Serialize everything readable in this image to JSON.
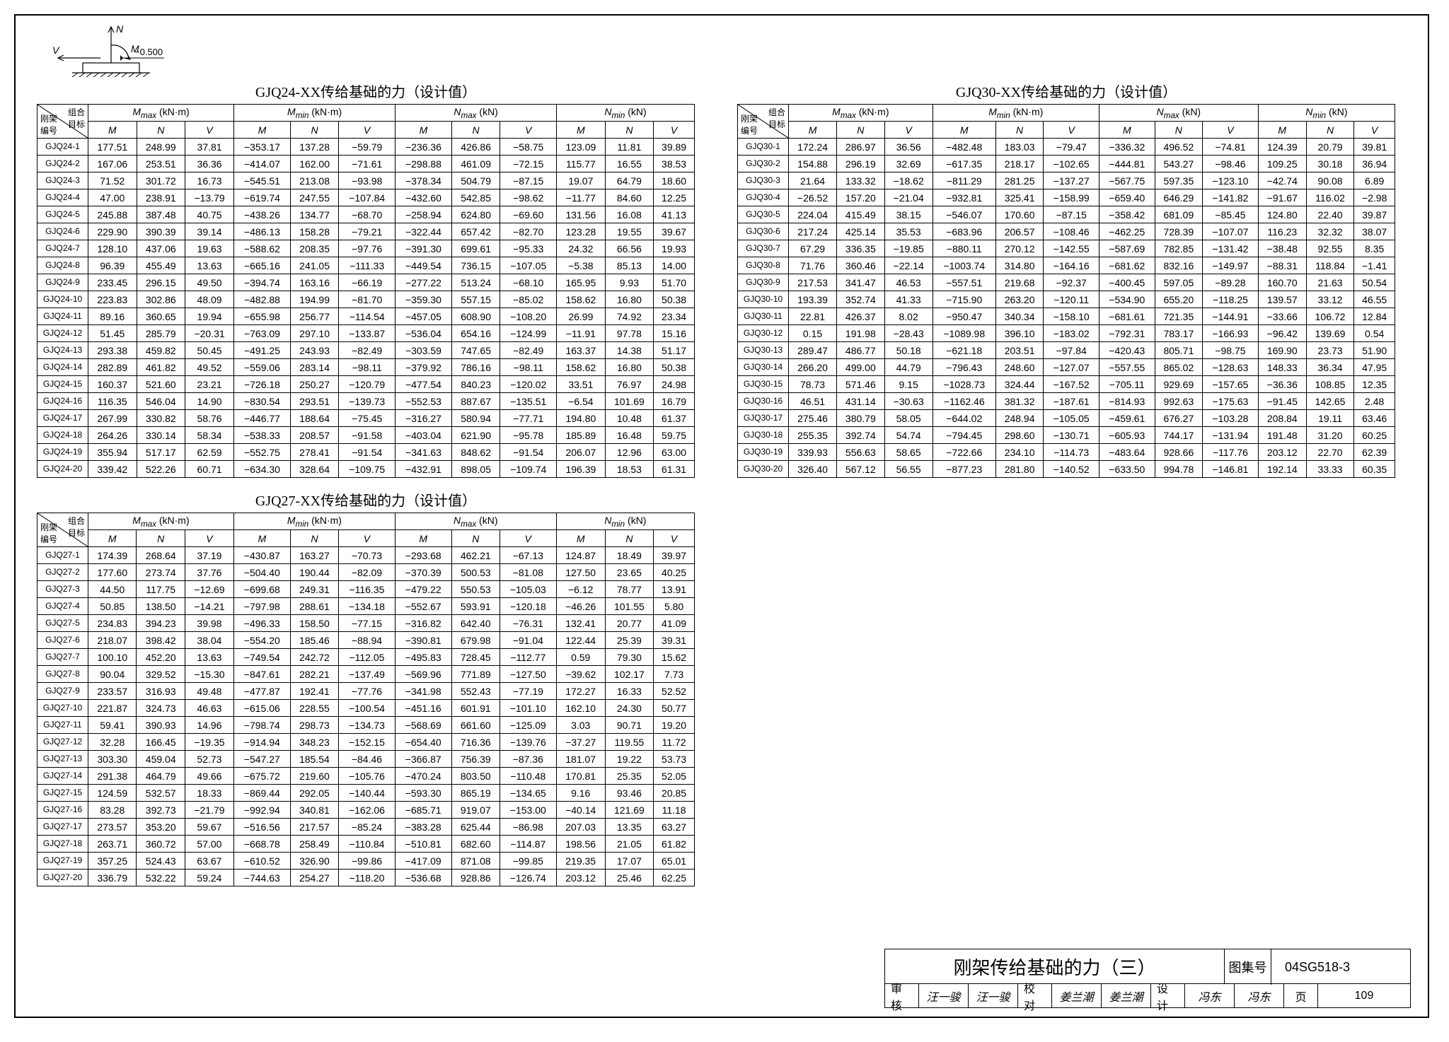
{
  "diagram": {
    "labels": {
      "n": "N",
      "m": "M",
      "v": "V",
      "lvl": "−0.500"
    }
  },
  "header": {
    "diag_top": "组合\n目标",
    "diag_bot": "刚架\n编号",
    "groups": [
      {
        "title": "M_max (kN·m)",
        "sub": [
          "M",
          "N",
          "V"
        ]
      },
      {
        "title": "M_min (kN·m)",
        "sub": [
          "M",
          "N",
          "V"
        ]
      },
      {
        "title": "N_max (kN)",
        "sub": [
          "M",
          "N",
          "V"
        ]
      },
      {
        "title": "N_min (kN)",
        "sub": [
          "M",
          "N",
          "V"
        ]
      }
    ]
  },
  "tables": [
    {
      "title": "GJQ24-XX传给基础的力（设计值）",
      "prefix": "GJQ24-",
      "rows": [
        [
          177.51,
          248.99,
          37.81,
          -353.17,
          137.28,
          -59.79,
          -236.36,
          426.86,
          -58.75,
          123.09,
          11.81,
          39.89
        ],
        [
          167.06,
          253.51,
          36.36,
          -414.07,
          162.0,
          -71.61,
          -298.88,
          461.09,
          -72.15,
          115.77,
          16.55,
          38.53
        ],
        [
          71.52,
          301.72,
          16.73,
          -545.51,
          213.08,
          -93.98,
          -378.34,
          504.79,
          -87.15,
          19.07,
          64.79,
          18.6
        ],
        [
          47.0,
          238.91,
          -13.79,
          -619.74,
          247.55,
          -107.84,
          -432.6,
          542.85,
          -98.62,
          -11.77,
          84.6,
          12.25
        ],
        [
          245.88,
          387.48,
          40.75,
          -438.26,
          134.77,
          -68.7,
          -258.94,
          624.8,
          -69.6,
          131.56,
          16.08,
          41.13
        ],
        [
          229.9,
          390.39,
          39.14,
          -486.13,
          158.28,
          -79.21,
          -322.44,
          657.42,
          -82.7,
          123.28,
          19.55,
          39.67
        ],
        [
          128.1,
          437.06,
          19.63,
          -588.62,
          208.35,
          -97.76,
          -391.3,
          699.61,
          -95.33,
          24.32,
          66.56,
          19.93
        ],
        [
          96.39,
          455.49,
          13.63,
          -665.16,
          241.05,
          -111.33,
          -449.54,
          736.15,
          -107.05,
          -5.38,
          85.13,
          14.0
        ],
        [
          233.45,
          296.15,
          49.5,
          -394.74,
          163.16,
          -66.19,
          -277.22,
          513.24,
          -68.1,
          165.95,
          9.93,
          51.7
        ],
        [
          223.83,
          302.86,
          48.09,
          -482.88,
          194.99,
          -81.7,
          -359.3,
          557.15,
          -85.02,
          158.62,
          16.8,
          50.38
        ],
        [
          89.16,
          360.65,
          19.94,
          -655.98,
          256.77,
          -114.54,
          -457.05,
          608.9,
          -108.2,
          26.99,
          74.92,
          23.34
        ],
        [
          51.45,
          285.79,
          -20.31,
          -763.09,
          297.1,
          -133.87,
          -536.04,
          654.16,
          -124.99,
          -11.91,
          97.78,
          15.16
        ],
        [
          293.38,
          459.82,
          50.45,
          -491.25,
          243.93,
          -82.49,
          -303.59,
          747.65,
          -82.49,
          163.37,
          14.38,
          51.17
        ],
        [
          282.89,
          461.82,
          49.52,
          -559.06,
          283.14,
          -98.11,
          -379.92,
          786.16,
          -98.11,
          158.62,
          16.8,
          50.38
        ],
        [
          160.37,
          521.6,
          23.21,
          -726.18,
          250.27,
          -120.79,
          -477.54,
          840.23,
          -120.02,
          33.51,
          76.97,
          24.98
        ],
        [
          116.35,
          546.04,
          14.9,
          -830.54,
          293.51,
          -139.73,
          -552.53,
          887.67,
          -135.51,
          -6.54,
          101.69,
          16.79
        ],
        [
          267.99,
          330.82,
          58.76,
          -446.77,
          188.64,
          -75.45,
          -316.27,
          580.94,
          -77.71,
          194.8,
          10.48,
          61.37
        ],
        [
          264.26,
          330.14,
          58.34,
          -538.33,
          208.57,
          -91.58,
          -403.04,
          621.9,
          -95.78,
          185.89,
          16.48,
          59.75
        ],
        [
          355.94,
          517.17,
          62.59,
          -552.75,
          278.41,
          -91.54,
          -341.63,
          848.62,
          -91.54,
          206.07,
          12.96,
          63.0
        ],
        [
          339.42,
          522.26,
          60.71,
          -634.3,
          328.64,
          -109.75,
          -432.91,
          898.05,
          -109.74,
          196.39,
          18.53,
          61.31
        ]
      ]
    },
    {
      "title": "GJQ27-XX传给基础的力（设计值）",
      "prefix": "GJQ27-",
      "rows": [
        [
          174.39,
          268.64,
          37.19,
          -430.87,
          163.27,
          -70.73,
          -293.68,
          462.21,
          -67.13,
          124.87,
          18.49,
          39.97
        ],
        [
          177.6,
          273.74,
          37.76,
          -504.4,
          190.44,
          -82.09,
          -370.39,
          500.53,
          -81.08,
          127.5,
          23.65,
          40.25
        ],
        [
          44.5,
          117.75,
          -12.69,
          -699.68,
          249.31,
          -116.35,
          -479.22,
          550.53,
          -105.03,
          -6.12,
          78.77,
          13.91
        ],
        [
          50.85,
          138.5,
          -14.21,
          -797.98,
          288.61,
          -134.18,
          -552.67,
          593.91,
          -120.18,
          -46.26,
          101.55,
          5.8
        ],
        [
          234.83,
          394.23,
          39.98,
          -496.33,
          158.5,
          -77.15,
          -316.82,
          642.4,
          -76.31,
          132.41,
          20.77,
          41.09
        ],
        [
          218.07,
          398.42,
          38.04,
          -554.2,
          185.46,
          -88.94,
          -390.81,
          679.98,
          -91.04,
          122.44,
          25.39,
          39.31
        ],
        [
          100.1,
          452.2,
          13.63,
          -749.54,
          242.72,
          -112.05,
          -495.83,
          728.45,
          -112.77,
          0.59,
          79.3,
          15.62
        ],
        [
          90.04,
          329.52,
          -15.3,
          -847.61,
          282.21,
          -137.49,
          -569.96,
          771.89,
          -127.5,
          -39.62,
          102.17,
          7.73
        ],
        [
          233.57,
          316.93,
          49.48,
          -477.87,
          192.41,
          -77.76,
          -341.98,
          552.43,
          -77.19,
          172.27,
          16.33,
          52.52
        ],
        [
          221.87,
          324.73,
          46.63,
          -615.06,
          228.55,
          -100.54,
          -451.16,
          601.91,
          -101.1,
          162.1,
          24.3,
          50.77
        ],
        [
          59.41,
          390.93,
          14.96,
          -798.74,
          298.73,
          -134.73,
          -568.69,
          661.6,
          -125.09,
          3.03,
          90.71,
          19.2
        ],
        [
          32.28,
          166.45,
          -19.35,
          -914.94,
          348.23,
          -152.15,
          -654.4,
          716.36,
          -139.76,
          -37.27,
          119.55,
          11.72
        ],
        [
          303.3,
          459.04,
          52.73,
          -547.27,
          185.54,
          -84.46,
          -366.87,
          756.39,
          -87.36,
          181.07,
          19.22,
          53.73
        ],
        [
          291.38,
          464.79,
          49.66,
          -675.72,
          219.6,
          -105.76,
          -470.24,
          803.5,
          -110.48,
          170.81,
          25.35,
          52.05
        ],
        [
          124.59,
          532.57,
          18.33,
          -869.44,
          292.05,
          -140.44,
          -593.3,
          865.19,
          -134.65,
          9.16,
          93.46,
          20.85
        ],
        [
          83.28,
          392.73,
          -21.79,
          -992.94,
          340.81,
          -162.06,
          -685.71,
          919.07,
          -153.0,
          -40.14,
          121.69,
          11.18
        ],
        [
          273.57,
          353.2,
          59.67,
          -516.56,
          217.57,
          -85.24,
          -383.28,
          625.44,
          -86.98,
          207.03,
          13.35,
          63.27
        ],
        [
          263.71,
          360.72,
          57.0,
          -668.78,
          258.49,
          -110.84,
          -510.81,
          682.6,
          -114.87,
          198.56,
          21.05,
          61.82
        ],
        [
          357.25,
          524.43,
          63.67,
          -610.52,
          326.9,
          -99.86,
          -417.09,
          871.08,
          -99.85,
          219.35,
          17.07,
          65.01
        ],
        [
          336.79,
          532.22,
          59.24,
          -744.63,
          254.27,
          -118.2,
          -536.68,
          928.86,
          -126.74,
          203.12,
          25.46,
          62.25
        ]
      ]
    },
    {
      "title": "GJQ30-XX传给基础的力（设计值）",
      "prefix": "GJQ30-",
      "rows": [
        [
          172.24,
          286.97,
          36.56,
          -482.48,
          183.03,
          -79.47,
          -336.32,
          496.52,
          -74.81,
          124.39,
          20.79,
          39.81
        ],
        [
          154.88,
          296.19,
          32.69,
          -617.35,
          218.17,
          -102.65,
          -444.81,
          543.27,
          -98.46,
          109.25,
          30.18,
          36.94
        ],
        [
          21.64,
          133.32,
          -18.62,
          -811.29,
          281.25,
          -137.27,
          -567.75,
          597.35,
          -123.1,
          -42.74,
          90.08,
          6.89
        ],
        [
          -26.52,
          157.2,
          -21.04,
          -932.81,
          325.41,
          -158.99,
          -659.4,
          646.29,
          -141.82,
          -91.67,
          116.02,
          -2.98
        ],
        [
          224.04,
          415.49,
          38.15,
          -546.07,
          170.6,
          -87.15,
          -358.42,
          681.09,
          -85.45,
          124.8,
          22.4,
          39.87
        ],
        [
          217.24,
          425.14,
          35.53,
          -683.96,
          206.57,
          -108.46,
          -462.25,
          728.39,
          -107.07,
          116.23,
          32.32,
          38.07
        ],
        [
          67.29,
          336.35,
          -19.85,
          -880.11,
          270.12,
          -142.55,
          -587.69,
          782.85,
          -131.42,
          -38.48,
          92.55,
          8.35
        ],
        [
          71.76,
          360.46,
          -22.14,
          -1003.74,
          314.8,
          -164.16,
          -681.62,
          832.16,
          -149.97,
          -88.31,
          118.84,
          -1.41
        ],
        [
          217.53,
          341.47,
          46.53,
          -557.51,
          219.68,
          -92.37,
          -400.45,
          597.05,
          -89.28,
          160.7,
          21.63,
          50.54
        ],
        [
          193.39,
          352.74,
          41.33,
          -715.9,
          263.2,
          -120.11,
          -534.9,
          655.2,
          -118.25,
          139.57,
          33.12,
          46.55
        ],
        [
          22.81,
          426.37,
          8.02,
          -950.47,
          340.34,
          -158.1,
          -681.61,
          721.35,
          -144.91,
          -33.66,
          106.72,
          12.84
        ],
        [
          0.15,
          191.98,
          -28.43,
          -1089.98,
          396.1,
          -183.02,
          -792.31,
          783.17,
          -166.93,
          -96.42,
          139.69,
          0.54
        ],
        [
          289.47,
          486.77,
          50.18,
          -621.18,
          203.51,
          -97.84,
          -420.43,
          805.71,
          -98.75,
          169.9,
          23.73,
          51.9
        ],
        [
          266.2,
          499.0,
          44.79,
          -796.43,
          248.6,
          -127.07,
          -557.55,
          865.02,
          -128.63,
          148.33,
          36.34,
          47.95
        ],
        [
          78.73,
          571.46,
          9.15,
          -1028.73,
          324.44,
          -167.52,
          -705.11,
          929.69,
          -157.65,
          -36.36,
          108.85,
          12.35
        ],
        [
          46.51,
          431.14,
          -30.63,
          -1162.46,
          381.32,
          -187.61,
          -814.93,
          992.63,
          -175.63,
          -91.45,
          142.65,
          2.48
        ],
        [
          275.46,
          380.79,
          58.05,
          -644.02,
          248.94,
          -105.05,
          -459.61,
          676.27,
          -103.28,
          208.84,
          19.11,
          63.46
        ],
        [
          255.35,
          392.74,
          54.74,
          -794.45,
          298.6,
          -130.71,
          -605.93,
          744.17,
          -131.94,
          191.48,
          31.2,
          60.25
        ],
        [
          339.93,
          556.63,
          58.65,
          -722.66,
          234.1,
          -114.73,
          -483.64,
          928.66,
          -117.76,
          203.12,
          22.7,
          62.39
        ],
        [
          326.4,
          567.12,
          56.55,
          -877.23,
          281.8,
          -140.52,
          -633.5,
          994.78,
          -146.81,
          192.14,
          33.33,
          60.35
        ]
      ]
    }
  ],
  "footer": {
    "title": "刚架传给基础的力（三）",
    "code_label": "图集号",
    "code_value": "04SG518-3",
    "page_label": "页",
    "page_value": "109",
    "sign": [
      {
        "lb": "审核",
        "nm": "汪一骏"
      },
      {
        "lb": "",
        "nm": "汪一骏"
      },
      {
        "lb": "校对",
        "nm": "姜兰潮"
      },
      {
        "lb": "",
        "nm": "姜兰潮"
      },
      {
        "lb": "设计",
        "nm": "冯东"
      },
      {
        "lb": "",
        "nm": "冯东"
      }
    ]
  }
}
